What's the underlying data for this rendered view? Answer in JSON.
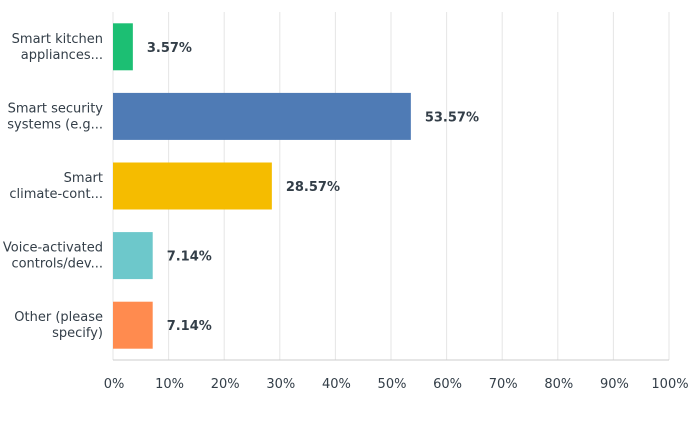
{
  "chart_data": {
    "type": "bar",
    "orientation": "horizontal",
    "categories": [
      [
        "Smart kitchen",
        "appliances..."
      ],
      [
        "Smart security",
        "systems (e.g..."
      ],
      [
        "Smart",
        "climate-cont..."
      ],
      [
        "Voice-activated",
        "controls/dev..."
      ],
      [
        "Other (please",
        "specify)"
      ]
    ],
    "values": [
      3.57,
      53.57,
      28.57,
      7.14,
      7.14
    ],
    "value_labels": [
      "3.57%",
      "53.57%",
      "28.57%",
      "7.14%",
      "7.14%"
    ],
    "colors": [
      "#1cbf73",
      "#4f7bb5",
      "#f5bc00",
      "#6dc8cb",
      "#ff8b4f"
    ],
    "xlim": [
      0,
      100
    ],
    "x_ticks": [
      "0%",
      "10%",
      "20%",
      "30%",
      "40%",
      "50%",
      "60%",
      "70%",
      "80%",
      "90%",
      "100%"
    ],
    "grid": true
  }
}
